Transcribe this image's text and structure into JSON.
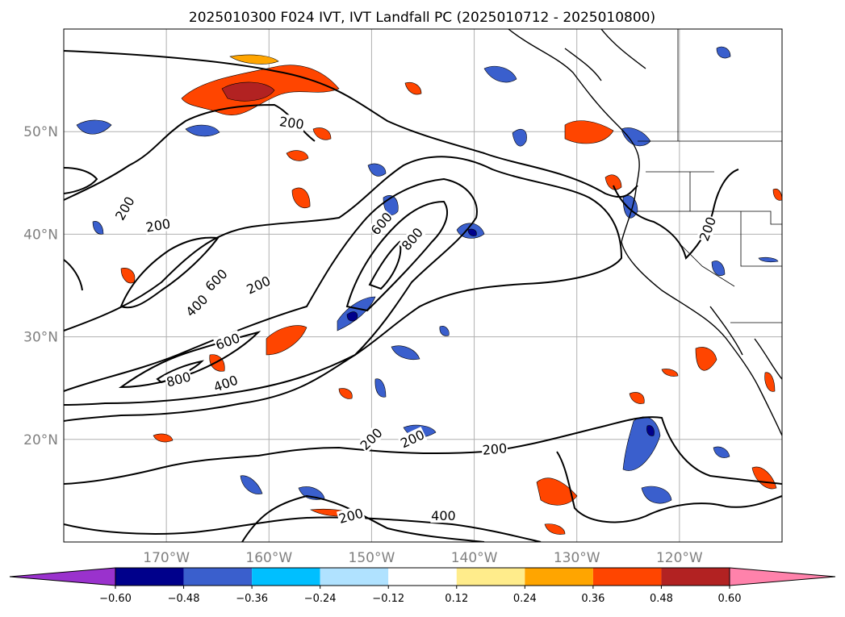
{
  "title": "2025010300 F024 IVT, IVT Landfall PC (2025010712 - 2025010800)",
  "map": {
    "lon_range": [
      180,
      110
    ],
    "lat_range": [
      10,
      60
    ],
    "grid": true,
    "lat_ticks": [
      {
        "value": 50,
        "label": "50°N"
      },
      {
        "value": 40,
        "label": "40°N"
      },
      {
        "value": 30,
        "label": "30°N"
      },
      {
        "value": 20,
        "label": "20°N"
      }
    ],
    "lon_ticks": [
      {
        "value": 170,
        "label": "170°W"
      },
      {
        "value": 160,
        "label": "160°W"
      },
      {
        "value": 150,
        "label": "150°W"
      },
      {
        "value": 140,
        "label": "140°W"
      },
      {
        "value": 130,
        "label": "130°W"
      },
      {
        "value": 120,
        "label": "120°W"
      }
    ],
    "contour_labels": [
      {
        "text": "200",
        "lon": 157.8,
        "lat": 50.8,
        "rot": 8
      },
      {
        "text": "200",
        "lon": 174.0,
        "lat": 42.5,
        "rot": -60
      },
      {
        "text": "200",
        "lon": 170.8,
        "lat": 40.8,
        "rot": -10
      },
      {
        "text": "200",
        "lon": 161.0,
        "lat": 35.0,
        "rot": -25
      },
      {
        "text": "600",
        "lon": 165.1,
        "lat": 35.5,
        "rot": -45
      },
      {
        "text": "400",
        "lon": 167.0,
        "lat": 33.0,
        "rot": -45
      },
      {
        "text": "600",
        "lon": 149.0,
        "lat": 41.0,
        "rot": -50
      },
      {
        "text": "800",
        "lon": 146.0,
        "lat": 39.5,
        "rot": -50
      },
      {
        "text": "600",
        "lon": 164.0,
        "lat": 29.5,
        "rot": -20
      },
      {
        "text": "800",
        "lon": 168.8,
        "lat": 25.8,
        "rot": -15
      },
      {
        "text": "400",
        "lon": 164.2,
        "lat": 25.4,
        "rot": -20
      },
      {
        "text": "200",
        "lon": 150.0,
        "lat": 20.0,
        "rot": -45
      },
      {
        "text": "200",
        "lon": 146.0,
        "lat": 20.0,
        "rot": -25
      },
      {
        "text": "200",
        "lon": 138.0,
        "lat": 19.0,
        "rot": -5
      },
      {
        "text": "200",
        "lon": 152.0,
        "lat": 12.5,
        "rot": -15
      },
      {
        "text": "400",
        "lon": 143.0,
        "lat": 12.5,
        "rot": 0
      },
      {
        "text": "200",
        "lon": 117.2,
        "lat": 40.5,
        "rot": -70
      }
    ]
  },
  "colorbar": {
    "ticks": [
      "−0.60",
      "−0.48",
      "−0.36",
      "−0.24",
      "−0.12",
      "0.12",
      "0.24",
      "0.36",
      "0.48",
      "0.60"
    ],
    "colors": [
      "#9a32cd",
      "#00008b",
      "#3a5fcd",
      "#00bfff",
      "#b0e2ff",
      "#ffffff",
      "#ffec8b",
      "#ffa500",
      "#ff4500",
      "#b22222",
      "#ff82ab"
    ]
  }
}
